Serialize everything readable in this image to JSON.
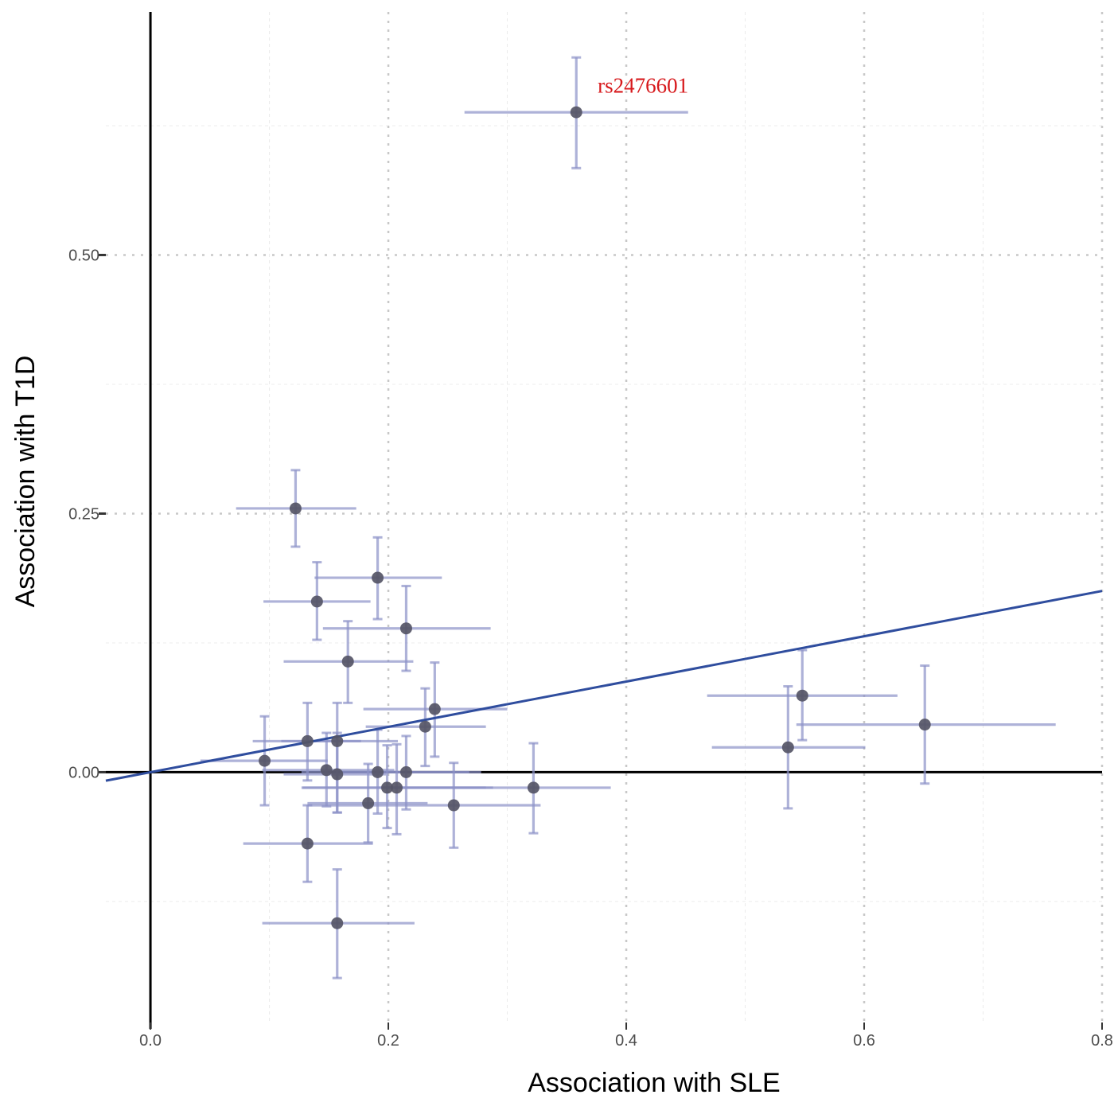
{
  "chart_data": {
    "type": "scatter",
    "title": "",
    "xlabel": "Association with SLE",
    "ylabel": "Association with T1D",
    "xlim": [
      -0.0375,
      0.8
    ],
    "ylim": [
      -0.242,
      0.735
    ],
    "x_ticks": [
      0.0,
      0.2,
      0.4,
      0.6,
      0.8
    ],
    "x_tick_labels": [
      "0.0",
      "0.2",
      "0.4",
      "0.6",
      "0.8"
    ],
    "y_ticks": [
      0.0,
      0.25,
      0.5
    ],
    "y_tick_labels": [
      "0.00",
      "0.25",
      "0.50"
    ],
    "grid": "dotted major, faint minor",
    "reference_lines": {
      "x": 0,
      "y": 0
    },
    "regression_line": {
      "intercept": 0.0,
      "slope": 0.219,
      "x_range": [
        -0.0375,
        0.8
      ]
    },
    "annotations": [
      {
        "text": "rs2476601",
        "x": 0.376,
        "y": 0.664,
        "color": "#d7191c"
      }
    ],
    "colors": {
      "point": "#555566",
      "errorbar": "#8c92c8",
      "regression": "#2f4d9e",
      "axis_line": "#000000",
      "grid": "#c8c8c8"
    },
    "points": [
      {
        "x": 0.358,
        "y": 0.638,
        "xmin": 0.264,
        "xmax": 0.452,
        "ymin": 0.584,
        "ymax": 0.691,
        "label": "rs2476601"
      },
      {
        "x": 0.122,
        "y": 0.255,
        "xmin": 0.072,
        "xmax": 0.173,
        "ymin": 0.218,
        "ymax": 0.292
      },
      {
        "x": 0.191,
        "y": 0.188,
        "xmin": 0.138,
        "xmax": 0.245,
        "ymin": 0.148,
        "ymax": 0.227
      },
      {
        "x": 0.14,
        "y": 0.165,
        "xmin": 0.095,
        "xmax": 0.185,
        "ymin": 0.128,
        "ymax": 0.203
      },
      {
        "x": 0.215,
        "y": 0.139,
        "xmin": 0.145,
        "xmax": 0.286,
        "ymin": 0.098,
        "ymax": 0.18
      },
      {
        "x": 0.166,
        "y": 0.107,
        "xmin": 0.112,
        "xmax": 0.221,
        "ymin": 0.067,
        "ymax": 0.146
      },
      {
        "x": 0.239,
        "y": 0.061,
        "xmin": 0.179,
        "xmax": 0.3,
        "ymin": 0.015,
        "ymax": 0.106
      },
      {
        "x": 0.231,
        "y": 0.044,
        "xmin": 0.181,
        "xmax": 0.282,
        "ymin": 0.006,
        "ymax": 0.081
      },
      {
        "x": 0.132,
        "y": 0.03,
        "xmin": 0.086,
        "xmax": 0.177,
        "ymin": -0.008,
        "ymax": 0.067
      },
      {
        "x": 0.157,
        "y": 0.03,
        "xmin": 0.11,
        "xmax": 0.208,
        "ymin": -0.039,
        "ymax": 0.067
      },
      {
        "x": 0.096,
        "y": 0.011,
        "xmin": 0.042,
        "xmax": 0.149,
        "ymin": -0.032,
        "ymax": 0.054
      },
      {
        "x": 0.148,
        "y": 0.002,
        "xmin": 0.094,
        "xmax": 0.205,
        "ymin": -0.033,
        "ymax": 0.038
      },
      {
        "x": 0.157,
        "y": -0.002,
        "xmin": 0.112,
        "xmax": 0.198,
        "ymin": -0.039,
        "ymax": 0.038
      },
      {
        "x": 0.191,
        "y": 0.0,
        "xmin": 0.127,
        "xmax": 0.268,
        "ymin": -0.04,
        "ymax": 0.041
      },
      {
        "x": 0.215,
        "y": 0.0,
        "xmin": 0.143,
        "xmax": 0.278,
        "ymin": -0.036,
        "ymax": 0.035
      },
      {
        "x": 0.199,
        "y": -0.015,
        "xmin": 0.127,
        "xmax": 0.282,
        "ymin": -0.054,
        "ymax": 0.026
      },
      {
        "x": 0.207,
        "y": -0.015,
        "xmin": 0.128,
        "xmax": 0.288,
        "ymin": -0.06,
        "ymax": 0.027
      },
      {
        "x": 0.322,
        "y": -0.015,
        "xmin": 0.201,
        "xmax": 0.387,
        "ymin": -0.059,
        "ymax": 0.028
      },
      {
        "x": 0.183,
        "y": -0.03,
        "xmin": 0.132,
        "xmax": 0.233,
        "ymin": -0.068,
        "ymax": 0.008
      },
      {
        "x": 0.255,
        "y": -0.032,
        "xmin": 0.132,
        "xmax": 0.328,
        "ymin": -0.073,
        "ymax": 0.009
      },
      {
        "x": 0.132,
        "y": -0.069,
        "xmin": 0.078,
        "xmax": 0.187,
        "ymin": -0.106,
        "ymax": -0.032
      },
      {
        "x": 0.157,
        "y": -0.146,
        "xmin": 0.094,
        "xmax": 0.222,
        "ymin": -0.199,
        "ymax": -0.094
      },
      {
        "x": 0.548,
        "y": 0.074,
        "xmin": 0.468,
        "xmax": 0.628,
        "ymin": 0.031,
        "ymax": 0.118
      },
      {
        "x": 0.536,
        "y": 0.024,
        "xmin": 0.472,
        "xmax": 0.601,
        "ymin": -0.035,
        "ymax": 0.083
      },
      {
        "x": 0.651,
        "y": 0.046,
        "xmin": 0.543,
        "xmax": 0.761,
        "ymin": -0.011,
        "ymax": 0.103
      }
    ]
  }
}
